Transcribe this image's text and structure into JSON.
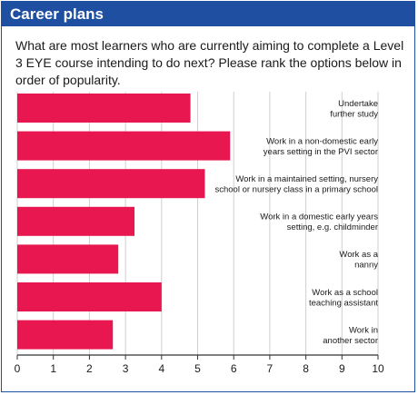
{
  "header": {
    "title": "Career plans"
  },
  "question": "What are most learners who are currently aiming to complete a Level 3 EYE course intending to do next? Please rank the options below in order of popularity.",
  "colors": {
    "bar": "#e8174f",
    "header": "#1f4fa0",
    "grid": "#cfcfcf",
    "axis": "#333333"
  },
  "chart_data": {
    "type": "bar",
    "orientation": "horizontal",
    "categories": [
      [
        "Undertake",
        "further study"
      ],
      [
        "Work in a non-domestic early",
        "years setting in the PVI sector"
      ],
      [
        "Work in a maintained setting, nursery",
        "school or nursery class in a primary school"
      ],
      [
        "Work in a domestic early years",
        "setting, e.g. childminder"
      ],
      [
        "Work as a",
        "nanny"
      ],
      [
        "Work as a school",
        "teaching assistant"
      ],
      [
        "Work in",
        "another sector"
      ]
    ],
    "values": [
      4.8,
      5.9,
      5.2,
      3.25,
      2.8,
      4.0,
      2.65
    ],
    "xlim": [
      0,
      10
    ],
    "xticks": [
      "0",
      "1",
      "2",
      "3",
      "4",
      "5",
      "6",
      "7",
      "8",
      "9",
      "10"
    ],
    "grid": true
  }
}
